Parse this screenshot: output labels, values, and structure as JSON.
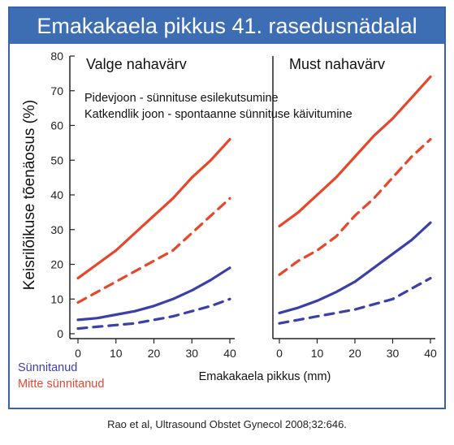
{
  "title": "Emakakaela pikkus 41. rasedusnädalal",
  "citation": "Rao et al, Ultrasound Obstet Gynecol 2008;32:646.",
  "colors": {
    "nulliparous": "#e8462b",
    "parous": "#3b3fa8",
    "title_bg": "#3d6db3"
  },
  "chart_data": {
    "type": "line",
    "title": "Emakakaela pikkus 41. rasedusnädalal",
    "xlabel": "Emakakaela pikkus (mm)",
    "ylabel": "Keisrilõikuse tõenäosus (%)",
    "xlim": [
      0,
      40
    ],
    "ylim": [
      0,
      80
    ],
    "x_ticks": [
      0,
      10,
      20,
      30,
      40
    ],
    "y_ticks": [
      0,
      10,
      20,
      30,
      40,
      50,
      60,
      70,
      80
    ],
    "grid": false,
    "legend_text": [
      "Pidevjoon - sünnituse esilekutsumine",
      "Katkendlik joon - spontaanne sünnituse käivitumine"
    ],
    "color_legend": [
      {
        "label": "Sünnitanud",
        "color": "#3b3fa8"
      },
      {
        "label": "Mitte sünnitanud",
        "color": "#e8462b"
      }
    ],
    "panels": [
      {
        "label": "Valge nahavärv",
        "series": [
          {
            "color": "#e8462b",
            "style": "solid",
            "x": [
              0,
              5,
              10,
              15,
              20,
              25,
              30,
              35,
              40
            ],
            "y": [
              16,
              20,
              24,
              29,
              34,
              39,
              45,
              50,
              56
            ]
          },
          {
            "color": "#e8462b",
            "style": "dashed",
            "x": [
              0,
              5,
              10,
              15,
              20,
              25,
              30,
              35,
              40
            ],
            "y": [
              9,
              12,
              15,
              18,
              21,
              24,
              29,
              34,
              39
            ]
          },
          {
            "color": "#3b3fa8",
            "style": "solid",
            "x": [
              0,
              5,
              10,
              15,
              20,
              25,
              30,
              35,
              40
            ],
            "y": [
              4,
              4.5,
              5.5,
              6.5,
              8,
              10,
              12.5,
              15.5,
              19
            ]
          },
          {
            "color": "#3b3fa8",
            "style": "dashed",
            "x": [
              0,
              5,
              10,
              15,
              20,
              25,
              30,
              35,
              40
            ],
            "y": [
              1.5,
              2,
              2.5,
              3,
              4,
              5,
              6.5,
              8,
              10
            ]
          }
        ]
      },
      {
        "label": "Must nahavärv",
        "series": [
          {
            "color": "#e8462b",
            "style": "solid",
            "x": [
              0,
              5,
              10,
              15,
              20,
              25,
              30,
              35,
              40
            ],
            "y": [
              31,
              35,
              40,
              45,
              51,
              57,
              62,
              68,
              74
            ]
          },
          {
            "color": "#e8462b",
            "style": "dashed",
            "x": [
              0,
              5,
              10,
              15,
              20,
              25,
              30,
              35,
              40
            ],
            "y": [
              17,
              21,
              24,
              28,
              34,
              39,
              45,
              51,
              56
            ]
          },
          {
            "color": "#3b3fa8",
            "style": "solid",
            "x": [
              0,
              5,
              10,
              15,
              20,
              25,
              30,
              35,
              40
            ],
            "y": [
              6,
              7.5,
              9.5,
              12,
              15,
              19,
              23,
              27,
              32
            ]
          },
          {
            "color": "#3b3fa8",
            "style": "dashed",
            "x": [
              0,
              5,
              10,
              15,
              20,
              25,
              30,
              35,
              40
            ],
            "y": [
              3,
              4,
              5,
              6,
              7,
              8.5,
              10,
              13,
              16
            ]
          }
        ]
      }
    ]
  }
}
